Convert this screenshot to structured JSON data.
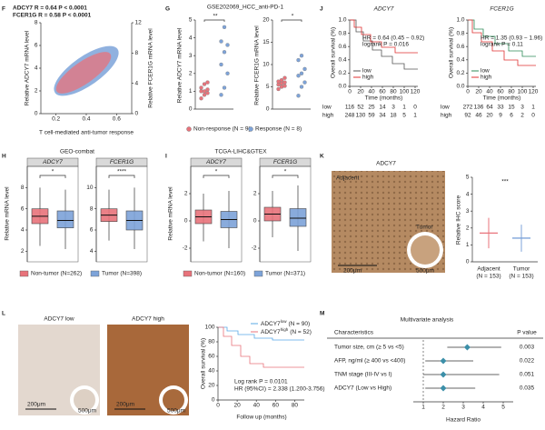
{
  "F": {
    "label": "F",
    "legend": [
      "ADCY7 R = 0.64 P < 0.0001",
      "FCER1G R = 0.58 P < 0.0001"
    ],
    "colors": [
      "#e8737b",
      "#7da3d9"
    ],
    "ylabel": "Relative ADCY7 mRNA level",
    "y2label": "Relative FCER1G mRNA level",
    "xlabel": "T cell-mediated anti-tumor response",
    "xlim": [
      0.1,
      0.7
    ],
    "xticks": [
      0.2,
      0.4,
      0.6
    ],
    "ylim": [
      0,
      8
    ],
    "yticks": [
      0,
      2,
      4,
      6,
      8
    ],
    "y2lim": [
      0,
      12
    ],
    "y2ticks": [
      0,
      4,
      8,
      12
    ]
  },
  "G": {
    "label": "G",
    "title": "GSE202069_HCC_anti-PD-1",
    "legend": [
      "Non-response (N = 9)",
      "Response (N = 8)"
    ],
    "colors": [
      "#e8737b",
      "#7da3d9"
    ],
    "plots": [
      {
        "ylabel": "Relative ADCY7 mRNA level",
        "ylim": [
          0,
          5
        ],
        "yticks": [
          0,
          1,
          2,
          3,
          4,
          5
        ],
        "sig": "**",
        "groups": [
          {
            "values": [
              0.6,
              0.8,
              0.9,
              1.0,
              1.0,
              1.1,
              1.2,
              1.4,
              1.5
            ]
          },
          {
            "values": [
              0.8,
              1.2,
              2.0,
              2.5,
              3.2,
              3.6,
              3.8,
              4.6
            ]
          }
        ]
      },
      {
        "ylabel": "Relative FCER1G mRNA level",
        "ylim": [
          0,
          20
        ],
        "yticks": [
          0,
          5,
          10,
          15,
          20
        ],
        "sig": "*",
        "groups": [
          {
            "values": [
              4.5,
              5.0,
              5.2,
              5.5,
              5.8,
              6.0,
              6.2,
              6.5,
              7.0
            ]
          },
          {
            "values": [
              3.0,
              5.0,
              6.0,
              7.5,
              8.0,
              9.0,
              11.0,
              12.0
            ]
          }
        ]
      }
    ]
  },
  "J": {
    "label": "J",
    "ylabel": "Overall survival (%)",
    "xlabel": "Time (months)",
    "legend": [
      "low",
      "high"
    ],
    "colors": [
      "#555555",
      "#e03030"
    ],
    "xlim": [
      0,
      125
    ],
    "xticks": [
      0,
      20,
      40,
      60,
      80,
      100,
      120
    ],
    "ylim": [
      0,
      1
    ],
    "yticks": [
      {
        "value": 0,
        "label": "0.0"
      },
      0.2,
      0.4,
      0.6,
      0.8,
      {
        "value": 1,
        "label": "1.0"
      }
    ],
    "plots": [
      {
        "title": "ADCY7",
        "hr": "HR = 0.64 (0.45 − 0.92)",
        "p": "logrank P = 0.016",
        "risk": [
          [
            116,
            52,
            25,
            14,
            3,
            1,
            0
          ],
          [
            248,
            130,
            59,
            34,
            18,
            5,
            1
          ]
        ]
      },
      {
        "title": "FCER1G",
        "hr": "HR = 1.35 (0.93 − 1.96)",
        "p": "logrank P = 0.11",
        "risk": [
          [
            272,
            136,
            64,
            33,
            15,
            3,
            1
          ],
          [
            92,
            46,
            20,
            9,
            6,
            2,
            0
          ]
        ]
      }
    ]
  },
  "H": {
    "label": "H",
    "title": "GEO-combat",
    "ylabel": "Relative mRNA level",
    "legend": [
      "Non-tumor (N=262)",
      "Tumor (N=398)"
    ],
    "colors": [
      "#e8737b",
      "#7da3d9"
    ],
    "facets": [
      {
        "name": "ADCY7",
        "sig": "*",
        "ylim": [
          1,
          10
        ],
        "yticks": [
          2,
          4,
          6,
          8
        ],
        "groups": [
          {
            "lo": 2.5,
            "q1": 4.6,
            "median": 5.3,
            "q3": 6.0,
            "hi": 8.0
          },
          {
            "lo": 2.2,
            "q1": 4.2,
            "median": 4.9,
            "q3": 5.8,
            "hi": 7.8
          }
        ]
      },
      {
        "name": "FCER1G",
        "sig": "****",
        "ylim": [
          3,
          12
        ],
        "yticks": [
          4,
          6,
          8,
          10
        ],
        "groups": [
          {
            "lo": 5.0,
            "q1": 6.8,
            "median": 7.4,
            "q3": 8.0,
            "hi": 9.8
          },
          {
            "lo": 4.2,
            "q1": 6.0,
            "median": 6.9,
            "q3": 7.8,
            "hi": 10.0
          }
        ]
      }
    ]
  },
  "I": {
    "label": "I",
    "title": "TCGA-LIHC&GTEX",
    "ylabel": "Relative mRNA level",
    "legend": [
      "Non-tumor (N=160)",
      "Tumor (N=371)"
    ],
    "colors": [
      "#e8737b",
      "#7da3d9"
    ],
    "facets": [
      {
        "name": "ADCY7",
        "sig": "*",
        "ylim": [
          -3,
          4
        ],
        "yticks": [
          -2,
          0,
          2
        ],
        "groups": [
          {
            "lo": -1.5,
            "q1": -0.2,
            "median": 0.3,
            "q3": 0.8,
            "hi": 2.0
          },
          {
            "lo": -2.0,
            "q1": -0.5,
            "median": 0.1,
            "q3": 0.7,
            "hi": 2.2
          }
        ]
      },
      {
        "name": "FCER1G",
        "sig": "*",
        "ylim": [
          -3,
          4
        ],
        "yticks": [
          -2,
          0,
          2
        ],
        "groups": [
          {
            "lo": -1.2,
            "q1": 0.0,
            "median": 0.5,
            "q3": 1.0,
            "hi": 2.2
          },
          {
            "lo": -2.2,
            "q1": -0.4,
            "median": 0.2,
            "q3": 0.9,
            "hi": 2.6
          }
        ]
      }
    ]
  },
  "K": {
    "label": "K",
    "title": "ADCY7",
    "img_labels": [
      "Adjacent",
      "Tumor"
    ],
    "scale": [
      "200μm",
      "500μm"
    ],
    "ylabel": "Relative IHC score",
    "sig": "***",
    "ylim": [
      0,
      5
    ],
    "yticks": [
      0,
      1,
      2,
      3,
      4,
      5
    ],
    "colors": [
      "#e8737b",
      "#7da3d9"
    ],
    "categories": [
      [
        "Adjacent",
        "(N = 153)"
      ],
      [
        "Tumor",
        "(N = 153)"
      ]
    ],
    "mean": [
      1.7,
      1.4
    ],
    "sd": [
      0.9,
      0.8
    ]
  },
  "L": {
    "label": "L",
    "images": [
      "ADCY7 low",
      "ADCY7 high"
    ],
    "scale": [
      "200μm",
      "500μm"
    ],
    "legend": [
      {
        "name": "ADCY7",
        "sup": "low",
        "n": "(N = 90)"
      },
      {
        "name": "ADCY7",
        "sup": "high",
        "n": "(N = 52)"
      }
    ],
    "colors": [
      "#5aa9e6",
      "#e8737b"
    ],
    "stats": [
      "Log rank P = 0.0101",
      "HR (95%CI) = 2.338 (1.200-3.756)"
    ],
    "ylabel": "Overall survival (%)",
    "xlabel": "Follow up (months)",
    "xlim": [
      0,
      90
    ],
    "xticks": [
      0,
      20,
      40,
      60,
      80
    ],
    "ylim": [
      0,
      100
    ],
    "yticks": [
      0,
      20,
      40,
      60,
      80,
      100
    ]
  },
  "M": {
    "label": "M",
    "title": "Multivariate analysis",
    "headers": [
      "Characteristics",
      "P value"
    ],
    "xlabel": "Hazard Ratio",
    "color": "#3c8fa8",
    "xlim": [
      0.5,
      5.5
    ],
    "xticks": [
      1,
      2,
      3,
      4,
      5
    ],
    "rows": [
      {
        "label": "Tumor size, cm (≥ 5 vs <5)",
        "hr": 3.2,
        "lo": 2.2,
        "hi": 4.9,
        "p": 0.003
      },
      {
        "label": "AFP, ng/ml (≥ 400 vs <400)",
        "hr": 2.0,
        "lo": 1.1,
        "hi": 3.5,
        "p": 0.022
      },
      {
        "label": "TNM stage (III-IV vs I)",
        "hr": 2.0,
        "lo": 1.0,
        "hi": 4.8,
        "p": 0.051
      },
      {
        "label": "ADCY7 (Low vs High)",
        "hr": 2.0,
        "lo": 1.1,
        "hi": 3.6,
        "p": 0.035
      }
    ]
  }
}
